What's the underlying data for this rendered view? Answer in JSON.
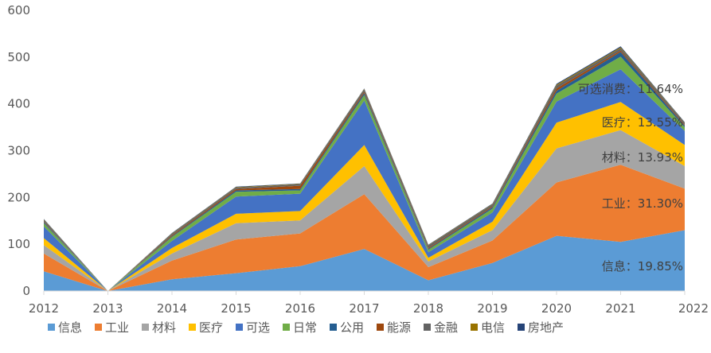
{
  "chart_data": {
    "type": "area",
    "stacked": true,
    "title": "",
    "xlabel": "",
    "ylabel": "",
    "ylim": [
      0,
      600
    ],
    "yticks": [
      0,
      100,
      200,
      300,
      400,
      500,
      600
    ],
    "grid": false,
    "legend_position": "bottom",
    "categories": [
      "2012",
      "2013",
      "2014",
      "2015",
      "2016",
      "2017",
      "2018",
      "2019",
      "2020",
      "2021",
      "2022"
    ],
    "series": [
      {
        "name": "信息",
        "color": "#5B9BD5",
        "values": [
          42,
          0,
          25,
          38,
          53,
          90,
          23,
          60,
          118,
          105,
          130
        ]
      },
      {
        "name": "工业",
        "color": "#ED7D31",
        "values": [
          38,
          0,
          40,
          72,
          70,
          117,
          28,
          48,
          114,
          165,
          89
        ]
      },
      {
        "name": "材料",
        "color": "#A5A5A5",
        "values": [
          18,
          0,
          15,
          35,
          28,
          60,
          12,
          22,
          73,
          74,
          48
        ]
      },
      {
        "name": "医疗",
        "color": "#FFC000",
        "values": [
          15,
          0,
          12,
          20,
          20,
          45,
          8,
          18,
          55,
          60,
          45
        ]
      },
      {
        "name": "可选",
        "color": "#4472C4",
        "values": [
          25,
          0,
          15,
          37,
          37,
          95,
          12,
          20,
          45,
          70,
          30
        ]
      },
      {
        "name": "日常",
        "color": "#70AD47",
        "values": [
          7,
          0,
          8,
          10,
          7,
          12,
          5,
          8,
          17,
          27,
          8
        ]
      },
      {
        "name": "公用",
        "color": "#255E91",
        "values": [
          2,
          0,
          2,
          3,
          3,
          4,
          2,
          3,
          6,
          10,
          3
        ]
      },
      {
        "name": "能源",
        "color": "#9E480E",
        "values": [
          1,
          0,
          2,
          3,
          7,
          3,
          2,
          2,
          5,
          3,
          2
        ]
      },
      {
        "name": "金融",
        "color": "#636363",
        "values": [
          4,
          0,
          3,
          3,
          3,
          5,
          5,
          4,
          6,
          5,
          4
        ]
      },
      {
        "name": "电信",
        "color": "#997300",
        "values": [
          1,
          0,
          1,
          1,
          1,
          1,
          1,
          1,
          2,
          2,
          1
        ]
      },
      {
        "name": "房地产",
        "color": "#264478",
        "values": [
          1,
          0,
          1,
          1,
          1,
          1,
          1,
          1,
          2,
          2,
          1
        ]
      }
    ],
    "annotations": [
      {
        "label": "信息",
        "value": "19.85%",
        "text": "信息：19.85%"
      },
      {
        "label": "工业",
        "value": "31.30%",
        "text": "工业：31.30%"
      },
      {
        "label": "材料",
        "value": "13.93%",
        "text": "材料：13.93%"
      },
      {
        "label": "医疗",
        "value": "13.55%",
        "text": "医疗：13.55%"
      },
      {
        "label": "可选消费",
        "value": "11.64%",
        "text": "可选消费：11.64%"
      }
    ]
  }
}
